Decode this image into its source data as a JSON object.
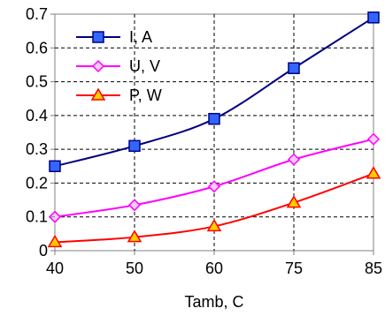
{
  "chart_data": {
    "type": "line",
    "title": "",
    "xlabel": "Tamb, C",
    "ylabel": "",
    "categories": [
      "40",
      "50",
      "60",
      "75",
      "85"
    ],
    "ylim": [
      0,
      0.7
    ],
    "yticks": [
      "0",
      "0.1",
      "0.2",
      "0.3",
      "0.4",
      "0.5",
      "0.6",
      "0.7"
    ],
    "grid": true,
    "legend_position": "top-left",
    "series": [
      {
        "name": "I, A",
        "values": [
          0.25,
          0.31,
          0.39,
          0.54,
          0.69
        ],
        "color": "#000080",
        "marker_fill": "#3366ff",
        "marker": "square"
      },
      {
        "name": "U, V",
        "values": [
          0.1,
          0.135,
          0.19,
          0.27,
          0.33
        ],
        "color": "#ff00ff",
        "marker_fill": "#ffccff",
        "marker": "diamond"
      },
      {
        "name": "P, W",
        "values": [
          0.025,
          0.04,
          0.072,
          0.142,
          0.228
        ],
        "color": "#ff0000",
        "marker_fill": "#ffcc00",
        "marker": "triangle"
      }
    ]
  }
}
